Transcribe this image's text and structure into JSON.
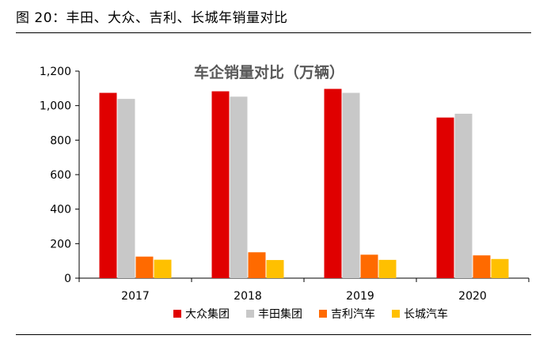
{
  "figure": {
    "caption": "图 20：丰田、大众、吉利、长城年销量对比"
  },
  "chart_data": {
    "type": "bar",
    "title": "车企销量对比（万辆）",
    "xlabel": "",
    "ylabel": "",
    "categories": [
      "2017",
      "2018",
      "2019",
      "2020"
    ],
    "ylim": [
      0,
      1200
    ],
    "yticks": [
      0,
      200,
      400,
      600,
      800,
      1000,
      1200
    ],
    "ytick_labels": [
      "0",
      "200",
      "400",
      "600",
      "800",
      "1,000",
      "1,200"
    ],
    "grid": false,
    "legend_position": "bottom",
    "series": [
      {
        "name": "大众集团",
        "color": "#e00000",
        "values": [
          1074,
          1083,
          1097,
          931
        ]
      },
      {
        "name": "丰田集团",
        "color": "#c8c8c8",
        "values": [
          1039,
          1052,
          1074,
          953
        ]
      },
      {
        "name": "吉利汽车",
        "color": "#ff6a00",
        "values": [
          125,
          150,
          136,
          132
        ]
      },
      {
        "name": "长城汽车",
        "color": "#ffc000",
        "values": [
          107,
          105,
          106,
          111
        ]
      }
    ]
  }
}
